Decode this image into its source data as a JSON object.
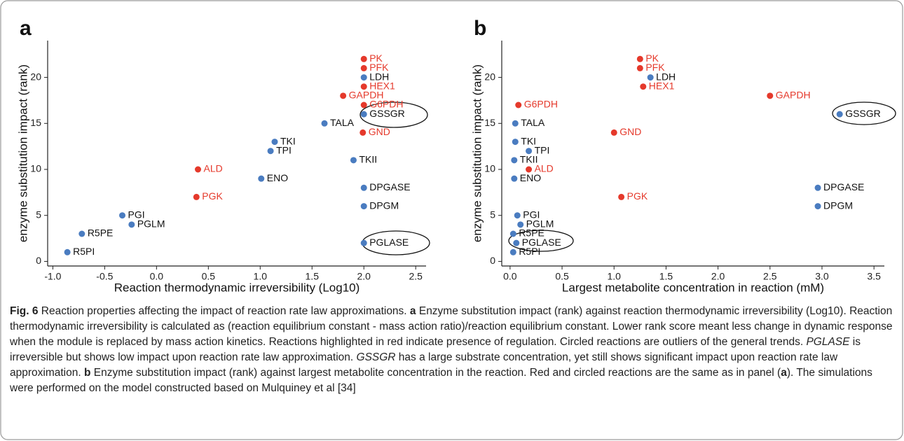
{
  "chart_data": [
    {
      "type": "scatter",
      "panel_label": "a",
      "xlabel": "Reaction thermodynamic irreversibility (Log10)",
      "ylabel": "enzyme substitution impact (rank)",
      "labels": [
        "R5PI",
        "R5PE",
        "PGI",
        "PGLM",
        "PGK",
        "ALD",
        "ENO",
        "TPI",
        "TKI",
        "TALA",
        "TKII",
        "GAPDH",
        "GND",
        "GSSGR",
        "G6PDH",
        "HEX1",
        "LDH",
        "PFK",
        "PK",
        "DPGASE",
        "DPGM",
        "PGLASE"
      ],
      "x": [
        -0.86,
        -0.72,
        -0.33,
        -0.24,
        0.385,
        0.4,
        1.01,
        1.1,
        1.14,
        1.62,
        1.9,
        1.8,
        1.99,
        2.0,
        2.0,
        2.0,
        2.0,
        2.0,
        2.0,
        2.0,
        2.0,
        2.0
      ],
      "y": [
        1,
        3,
        5,
        4,
        7,
        10,
        9,
        12,
        13,
        15,
        11,
        18,
        14,
        16,
        17,
        19,
        20,
        21,
        22,
        8,
        6,
        2
      ],
      "colors": [
        "#4a7cc0",
        "#4a7cc0",
        "#4a7cc0",
        "#4a7cc0",
        "#e5392b",
        "#e5392b",
        "#4a7cc0",
        "#4a7cc0",
        "#4a7cc0",
        "#4a7cc0",
        "#4a7cc0",
        "#e5392b",
        "#e5392b",
        "#4a7cc0",
        "#e5392b",
        "#e5392b",
        "#4a7cc0",
        "#e5392b",
        "#e5392b",
        "#4a7cc0",
        "#4a7cc0",
        "#4a7cc0"
      ],
      "xlim": [
        -1.05,
        2.6
      ],
      "xticks": [
        {
          "value": -1,
          "label": "-1.0"
        },
        -0.5,
        {
          "value": 0,
          "label": "0.0"
        },
        0.5,
        {
          "value": 1,
          "label": "1.0"
        },
        1.5,
        {
          "value": 2,
          "label": "2.0"
        },
        2.5
      ],
      "ylim": [
        -0.5,
        24
      ],
      "yticks": [
        0,
        5,
        10,
        15,
        20
      ]
    },
    {
      "type": "scatter",
      "panel_label": "b",
      "xlabel": "Largest metabolite concentration in reaction (mM)",
      "ylabel": "enzyme substitution impact (rank)",
      "labels": [
        "PK",
        "PFK",
        "LDH",
        "HEX1",
        "GAPDH",
        "G6PDH",
        "GSSGR",
        "TALA",
        "GND",
        "TKI",
        "TPI",
        "TKII",
        "ALD",
        "ENO",
        "DPGASE",
        "PGK",
        "DPGM",
        "PGI",
        "PGLM",
        "R5PE",
        "PGLASE",
        "R5PI"
      ],
      "x": [
        1.25,
        1.25,
        1.35,
        1.28,
        2.5,
        0.08,
        3.17,
        0.05,
        1.0,
        0.05,
        0.18,
        0.04,
        0.18,
        0.04,
        2.96,
        1.07,
        2.96,
        0.07,
        0.1,
        0.03,
        0.06,
        0.03
      ],
      "y": [
        22,
        21,
        20,
        19,
        18,
        17,
        16,
        15,
        14,
        13,
        12,
        11,
        10,
        9,
        8,
        7,
        6,
        5,
        4,
        3,
        2,
        1
      ],
      "colors": [
        "#e5392b",
        "#e5392b",
        "#4a7cc0",
        "#e5392b",
        "#e5392b",
        "#e5392b",
        "#4a7cc0",
        "#4a7cc0",
        "#e5392b",
        "#4a7cc0",
        "#4a7cc0",
        "#4a7cc0",
        "#e5392b",
        "#4a7cc0",
        "#4a7cc0",
        "#e5392b",
        "#4a7cc0",
        "#4a7cc0",
        "#4a7cc0",
        "#4a7cc0",
        "#4a7cc0",
        "#4a7cc0"
      ],
      "xlim": [
        -0.08,
        3.6
      ],
      "xticks": [
        {
          "value": 0,
          "label": "0.0"
        },
        0.5,
        {
          "value": 1,
          "label": "1.0"
        },
        1.5,
        {
          "value": 2,
          "label": "2.0"
        },
        2.5,
        {
          "value": 3,
          "label": "3.0"
        },
        3.5
      ],
      "ylim": [
        -0.5,
        24
      ],
      "yticks": [
        0,
        5,
        10,
        15,
        20
      ]
    }
  ],
  "caption": [
    {
      "text": "Fig. 6",
      "style": "bold"
    },
    {
      "text": " Reaction properties affecting the impact of reaction rate law approximations. ",
      "style": "normal"
    },
    {
      "text": "a",
      "style": "bold"
    },
    {
      "text": " Enzyme substitution impact (rank) against reaction thermodynamic irreversibility (Log10). Reaction thermodynamic irreversibility is calculated as (reaction equilibrium constant - mass action ratio)/reaction equilibrium constant. Lower rank score meant less change in dynamic response when the module is replaced by mass action kinetics. Reactions highlighted in red indicate presence of regulation. Circled reactions are outliers of the general trends. ",
      "style": "normal"
    },
    {
      "text": "PGLASE",
      "style": "italic"
    },
    {
      "text": " is irreversible but shows low impact upon reaction rate law approximation. ",
      "style": "normal"
    },
    {
      "text": "GSSGR",
      "style": "italic"
    },
    {
      "text": " has a large substrate concentration, yet still shows significant impact upon reaction rate law approximation. ",
      "style": "normal"
    },
    {
      "text": "b",
      "style": "bold"
    },
    {
      "text": " Enzyme substitution impact (rank) against largest metabolite concentration in the reaction. Red and circled reactions are the same as in panel (",
      "style": "normal"
    },
    {
      "text": "a",
      "style": "bold"
    },
    {
      "text": "). The simulations were performed on the model constructed based on Mulquiney et al [34]",
      "style": "normal"
    }
  ]
}
